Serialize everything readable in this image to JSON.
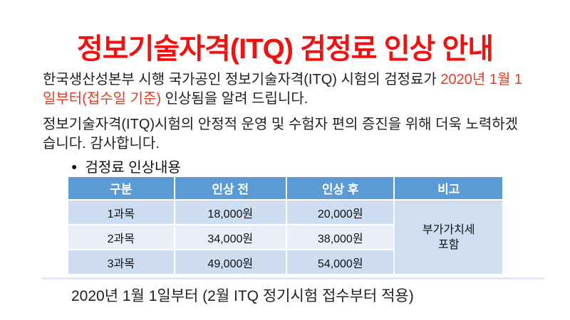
{
  "title": {
    "text": "정보기술자격(ITQ) 검정료 인상 안내"
  },
  "intro": {
    "seg1": "한국생산성본부 시행 국가공인 정보기술자격(ITQ) 시험의 검정료가 ",
    "seg2_red": "2020년 1월 1일부터(접수일 기준)",
    "seg3": " 인상됨을 알려 드립니다.",
    "p2": "정보기술자격(ITQ)시험의 안정적 운영 및 수험자 편의 증진을 위해 더욱 노력하겠습니다. 감사합니다."
  },
  "section": {
    "bullet": "●",
    "label": "검정료 인상내용"
  },
  "table": {
    "columns": [
      "구분",
      "인상 전",
      "인상 후",
      "비고"
    ],
    "rows": [
      {
        "subject": "1과목",
        "before": "18,000원",
        "after": "20,000원"
      },
      {
        "subject": "2과목",
        "before": "34,000원",
        "after": "38,000원"
      },
      {
        "subject": "3과목",
        "before": "49,000원",
        "after": "54,000원"
      }
    ],
    "note_line1": "부가가치세",
    "note_line2": "포함"
  },
  "footer": {
    "text": "2020년 1월 1일부터 (2월 ITQ 정기시험 접수부터 적용)"
  },
  "colors": {
    "title_red": "#f01111",
    "accent_red": "#e5391d",
    "table_header_bg": "#5b9bd5",
    "table_band_dark": "#cddcef",
    "table_band_light": "#e9eef8",
    "table_note_bg": "#cfdff0"
  }
}
